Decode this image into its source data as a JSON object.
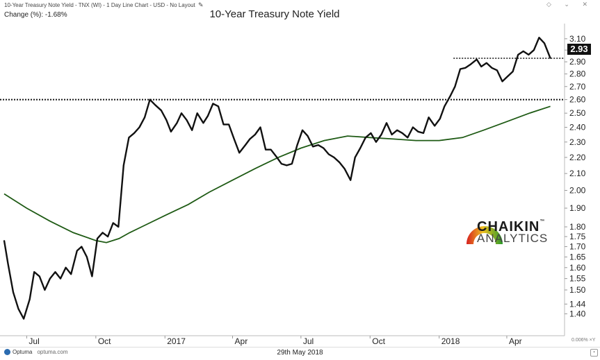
{
  "header": {
    "description": "10-Year Treasury Note Yield - TNX (WI) - 1 Day Line Chart - USD - No Layout",
    "edit_icon": "pencil-icon",
    "change_label": "Change (%): -1.68%"
  },
  "window_controls": "◇ ⌄ ✕",
  "footer": {
    "brand": "Optuma",
    "url": "optuma.com",
    "date": "29th May 2018",
    "scale_indicator": "0.006% ×Y",
    "lock_icon": "lock-icon"
  },
  "logo": {
    "word1": "CHAIKIN",
    "tm": "™",
    "word2": "ANALYTICS"
  },
  "chart_data": {
    "type": "line",
    "title": "10-Year Treasury Note Yield",
    "x_tick_labels": [
      "Jul",
      "Oct",
      "2017",
      "Apr",
      "Jul",
      "Oct",
      "2018",
      "Apr"
    ],
    "y_scale": "log",
    "ylim": [
      1.33,
      3.2
    ],
    "y_tick_labels": [
      "3.10",
      "3.00",
      "2.90",
      "2.80",
      "2.70",
      "2.60",
      "2.50",
      "2.40",
      "2.30",
      "2.20",
      "2.10",
      "2.00",
      "1.90",
      "1.80",
      "1.75",
      "1.70",
      "1.65",
      "1.60",
      "1.55",
      "1.50",
      "1.44",
      "1.40"
    ],
    "y_ticks": [
      3.1,
      3.0,
      2.9,
      2.8,
      2.7,
      2.6,
      2.5,
      2.4,
      2.3,
      2.2,
      2.1,
      2.0,
      1.9,
      1.8,
      1.75,
      1.7,
      1.65,
      1.6,
      1.55,
      1.5,
      1.44,
      1.4
    ],
    "last_value_label": "2.93",
    "colors": {
      "price": "#111111",
      "ma": "#1e5a14",
      "reference": "#111111"
    },
    "reference_lines": [
      {
        "value": 2.6,
        "style": "dotted"
      },
      {
        "value": 2.93,
        "style": "dotted"
      }
    ],
    "series": [
      {
        "color": "#111111",
        "x": [
          "2016-06-01",
          "2016-06-06",
          "2016-06-13",
          "2016-06-20",
          "2016-06-27",
          "2016-07-05",
          "2016-07-11",
          "2016-07-18",
          "2016-07-25",
          "2016-08-01",
          "2016-08-08",
          "2016-08-15",
          "2016-08-22",
          "2016-08-29",
          "2016-09-06",
          "2016-09-12",
          "2016-09-19",
          "2016-09-26",
          "2016-10-03",
          "2016-10-10",
          "2016-10-17",
          "2016-10-24",
          "2016-10-31",
          "2016-11-07",
          "2016-11-14",
          "2016-11-21",
          "2016-11-28",
          "2016-12-05",
          "2016-12-12",
          "2016-12-19",
          "2016-12-27",
          "2017-01-03",
          "2017-01-09",
          "2017-01-17",
          "2017-01-23",
          "2017-01-30",
          "2017-02-06",
          "2017-02-13",
          "2017-02-21",
          "2017-02-27",
          "2017-03-06",
          "2017-03-13",
          "2017-03-20",
          "2017-03-27",
          "2017-04-03",
          "2017-04-10",
          "2017-04-18",
          "2017-04-24",
          "2017-05-01",
          "2017-05-08",
          "2017-05-15",
          "2017-05-22",
          "2017-05-30",
          "2017-06-05",
          "2017-06-12",
          "2017-06-19",
          "2017-06-26",
          "2017-07-03",
          "2017-07-10",
          "2017-07-17",
          "2017-07-24",
          "2017-07-31",
          "2017-08-07",
          "2017-08-14",
          "2017-08-21",
          "2017-08-28",
          "2017-09-05",
          "2017-09-11",
          "2017-09-18",
          "2017-09-25",
          "2017-10-02",
          "2017-10-09",
          "2017-10-16",
          "2017-10-23",
          "2017-10-30",
          "2017-11-06",
          "2017-11-13",
          "2017-11-20",
          "2017-11-27",
          "2017-12-04",
          "2017-12-11",
          "2017-12-18",
          "2017-12-26",
          "2018-01-02",
          "2018-01-08",
          "2018-01-16",
          "2018-01-22",
          "2018-01-29",
          "2018-02-05",
          "2018-02-12",
          "2018-02-20",
          "2018-02-26",
          "2018-03-05",
          "2018-03-12",
          "2018-03-19",
          "2018-03-26",
          "2018-04-02",
          "2018-04-09",
          "2018-04-16",
          "2018-04-23",
          "2018-04-30",
          "2018-05-07",
          "2018-05-14",
          "2018-05-21",
          "2018-05-29"
        ],
        "values": [
          1.73,
          1.62,
          1.49,
          1.42,
          1.38,
          1.46,
          1.58,
          1.56,
          1.5,
          1.55,
          1.58,
          1.55,
          1.6,
          1.57,
          1.68,
          1.7,
          1.65,
          1.56,
          1.74,
          1.77,
          1.75,
          1.82,
          1.8,
          2.15,
          2.33,
          2.36,
          2.4,
          2.47,
          2.6,
          2.56,
          2.52,
          2.45,
          2.37,
          2.43,
          2.5,
          2.45,
          2.38,
          2.5,
          2.43,
          2.48,
          2.57,
          2.55,
          2.42,
          2.42,
          2.32,
          2.23,
          2.28,
          2.32,
          2.35,
          2.4,
          2.25,
          2.25,
          2.2,
          2.16,
          2.15,
          2.16,
          2.28,
          2.38,
          2.34,
          2.27,
          2.28,
          2.26,
          2.22,
          2.2,
          2.17,
          2.13,
          2.06,
          2.2,
          2.26,
          2.33,
          2.36,
          2.3,
          2.35,
          2.43,
          2.35,
          2.38,
          2.36,
          2.33,
          2.4,
          2.37,
          2.36,
          2.47,
          2.41,
          2.46,
          2.55,
          2.63,
          2.7,
          2.84,
          2.85,
          2.88,
          2.92,
          2.86,
          2.89,
          2.85,
          2.83,
          2.74,
          2.78,
          2.82,
          2.96,
          2.99,
          2.96,
          3.0,
          3.11,
          3.06,
          2.93
        ]
      },
      {
        "color": "#1e5a14",
        "x": [
          "2016-06-01",
          "2016-07-01",
          "2016-08-01",
          "2016-09-01",
          "2016-10-01",
          "2016-10-15",
          "2016-11-01",
          "2016-11-15",
          "2016-12-01",
          "2017-01-01",
          "2017-02-01",
          "2017-03-01",
          "2017-04-01",
          "2017-05-01",
          "2017-06-01",
          "2017-07-01",
          "2017-08-01",
          "2017-09-01",
          "2017-10-01",
          "2017-11-01",
          "2017-12-01",
          "2018-01-01",
          "2018-02-01",
          "2018-03-01",
          "2018-04-01",
          "2018-05-01",
          "2018-05-29"
        ],
        "values": [
          1.98,
          1.9,
          1.83,
          1.77,
          1.73,
          1.72,
          1.74,
          1.77,
          1.8,
          1.86,
          1.92,
          1.99,
          2.06,
          2.13,
          2.2,
          2.26,
          2.31,
          2.34,
          2.33,
          2.32,
          2.31,
          2.31,
          2.33,
          2.38,
          2.44,
          2.5,
          2.55
        ]
      }
    ]
  }
}
